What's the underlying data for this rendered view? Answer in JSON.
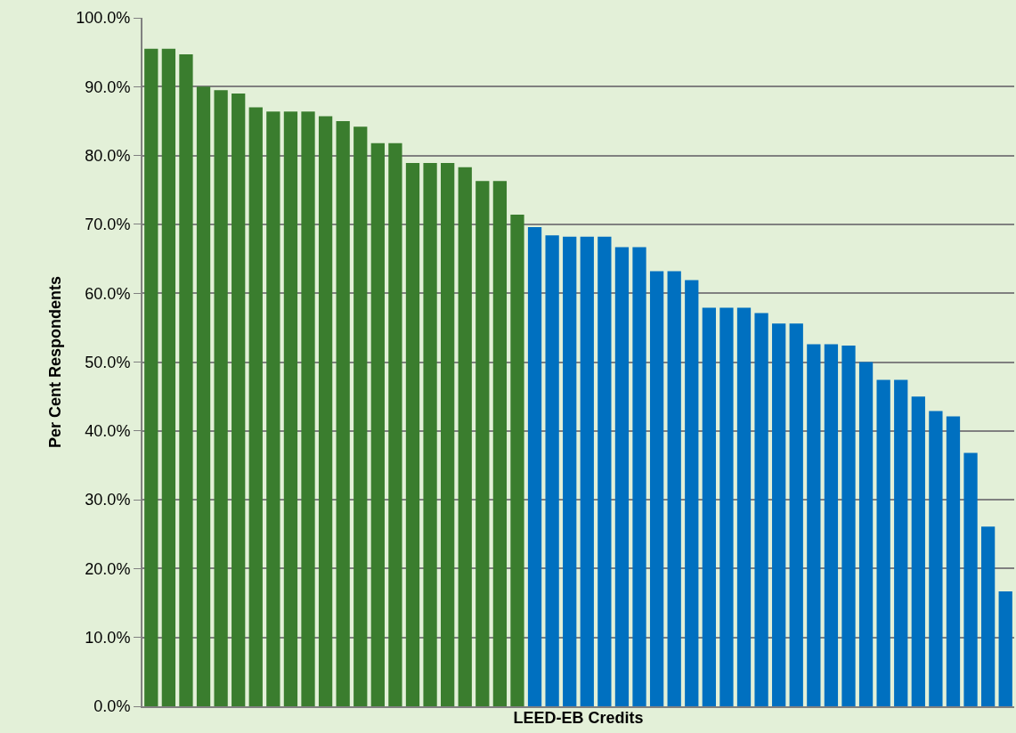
{
  "chart_data": {
    "type": "bar",
    "xlabel": "LEED-EB Credits",
    "ylabel": "Per Cent Respondents",
    "categories": [
      null,
      null,
      null,
      null,
      null,
      null,
      null,
      null,
      null,
      null,
      null,
      null,
      null,
      null,
      null,
      null,
      null,
      null,
      null,
      null,
      null,
      null,
      null,
      null,
      null,
      null,
      null,
      null,
      null,
      null,
      null,
      null,
      null,
      null,
      null,
      null,
      null,
      null,
      null,
      null,
      null,
      null,
      null,
      null,
      null,
      null,
      null,
      null,
      null,
      null
    ],
    "values": [
      95.5,
      95.5,
      94.7,
      90,
      89.5,
      89,
      87,
      86.4,
      86.4,
      86.4,
      85.7,
      85,
      84.2,
      81.8,
      81.8,
      78.9,
      78.9,
      78.9,
      78.3,
      76.3,
      76.3,
      71.4,
      69.6,
      68.4,
      68.2,
      68.2,
      68.2,
      66.7,
      66.7,
      63.2,
      63.2,
      61.9,
      57.9,
      57.9,
      57.9,
      57.1,
      55.6,
      55.6,
      52.6,
      52.6,
      52.4,
      50,
      47.4,
      47.4,
      45,
      42.9,
      42.1,
      36.8,
      26.1,
      16.7
    ],
    "colors": [
      "#3a7d2e",
      "#3a7d2e",
      "#3a7d2e",
      "#3a7d2e",
      "#3a7d2e",
      "#3a7d2e",
      "#3a7d2e",
      "#3a7d2e",
      "#3a7d2e",
      "#3a7d2e",
      "#3a7d2e",
      "#3a7d2e",
      "#3a7d2e",
      "#3a7d2e",
      "#3a7d2e",
      "#3a7d2e",
      "#3a7d2e",
      "#3a7d2e",
      "#3a7d2e",
      "#3a7d2e",
      "#3a7d2e",
      "#3a7d2e",
      "#0070c0",
      "#0070c0",
      "#0070c0",
      "#0070c0",
      "#0070c0",
      "#0070c0",
      "#0070c0",
      "#0070c0",
      "#0070c0",
      "#0070c0",
      "#0070c0",
      "#0070c0",
      "#0070c0",
      "#0070c0",
      "#0070c0",
      "#0070c0",
      "#0070c0",
      "#0070c0",
      "#0070c0",
      "#0070c0",
      "#0070c0",
      "#0070c0",
      "#0070c0",
      "#0070c0",
      "#0070c0",
      "#0070c0",
      "#0070c0",
      "#0070c0"
    ],
    "ylim": [
      0,
      100
    ],
    "yticks": [
      {
        "value": 0,
        "label": "0.0%"
      },
      {
        "value": 10,
        "label": "10.0%"
      },
      {
        "value": 20,
        "label": "20.0%"
      },
      {
        "value": 30,
        "label": "30.0%"
      },
      {
        "value": 40,
        "label": "40.0%"
      },
      {
        "value": 50,
        "label": "50.0%"
      },
      {
        "value": 60,
        "label": "60.0%"
      },
      {
        "value": 70,
        "label": "70.0%"
      },
      {
        "value": 80,
        "label": "80.0%"
      },
      {
        "value": 90,
        "label": "90.0%"
      },
      {
        "value": 100,
        "label": "100.0%"
      }
    ],
    "grid": "y"
  }
}
